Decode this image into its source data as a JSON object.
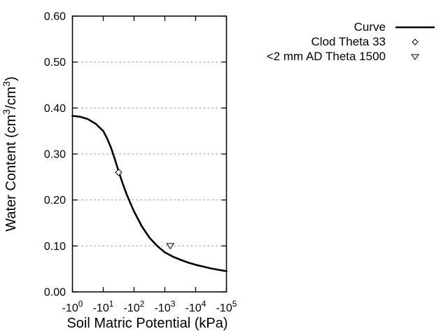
{
  "window": {
    "background": "#ffffff"
  },
  "colors": {
    "text": "#000000",
    "frame": "#000000",
    "curve": "#000000",
    "grid": "#999999",
    "marker_stroke": "#000000",
    "marker_fill": "#ffffff"
  },
  "legend": {
    "position": "top-right, outside plot area",
    "items": [
      {
        "label": "Curve",
        "sample": "solid-line"
      },
      {
        "label": "Clod Theta 33",
        "sample": "open-diamond"
      },
      {
        "label": "<2 mm AD Theta 1500",
        "sample": "open-triangle-down"
      }
    ]
  },
  "chart_data": {
    "type": "line",
    "title": "",
    "xlabel": "Soil Matric Potential (kPa)",
    "ylabel": "Water Content (cm3/cm3)",
    "ylabel_parts": [
      {
        "t": "Water Content (cm"
      },
      {
        "sup": "3"
      },
      {
        "t": "/cm"
      },
      {
        "sup": "3"
      },
      {
        "t": ")"
      }
    ],
    "x_scale": "negative log10 axis, from -10^0 to -10^5 kPa",
    "xlim_decades": [
      0,
      5
    ],
    "ylim": [
      0.0,
      0.6
    ],
    "grid": "horizontal dashed gray lines at 0.10 through 0.50",
    "x_ticks": [
      {
        "base": "-10",
        "exp": "0",
        "decade": 0
      },
      {
        "base": "-10",
        "exp": "1",
        "decade": 1
      },
      {
        "base": "-10",
        "exp": "2",
        "decade": 2
      },
      {
        "base": "-10",
        "exp": "3",
        "decade": 3
      },
      {
        "base": "-10",
        "exp": "4",
        "decade": 4
      },
      {
        "base": "-10",
        "exp": "5",
        "decade": 5
      }
    ],
    "y_ticks": [
      {
        "label": "0.00",
        "value": 0.0
      },
      {
        "label": "0.10",
        "value": 0.1
      },
      {
        "label": "0.20",
        "value": 0.2
      },
      {
        "label": "0.30",
        "value": 0.3
      },
      {
        "label": "0.40",
        "value": 0.4
      },
      {
        "label": "0.50",
        "value": 0.5
      },
      {
        "label": "0.60",
        "value": 0.6
      }
    ],
    "grid_y_values": [
      0.1,
      0.2,
      0.3,
      0.4,
      0.5
    ],
    "series": [
      {
        "name": "Curve",
        "style": "solid black line, width ~2.5px",
        "points_log10kpa_theta": [
          [
            0.0,
            0.383
          ],
          [
            0.25,
            0.381
          ],
          [
            0.5,
            0.376
          ],
          [
            0.75,
            0.366
          ],
          [
            1.0,
            0.35
          ],
          [
            1.125,
            0.334
          ],
          [
            1.25,
            0.314
          ],
          [
            1.375,
            0.289
          ],
          [
            1.5,
            0.262
          ],
          [
            1.625,
            0.237
          ],
          [
            1.75,
            0.214
          ],
          [
            1.875,
            0.194
          ],
          [
            2.0,
            0.175
          ],
          [
            2.25,
            0.143
          ],
          [
            2.5,
            0.118
          ],
          [
            2.75,
            0.1
          ],
          [
            3.0,
            0.086
          ],
          [
            3.25,
            0.077
          ],
          [
            3.5,
            0.07
          ],
          [
            3.75,
            0.064
          ],
          [
            4.0,
            0.059
          ],
          [
            4.25,
            0.055
          ],
          [
            4.5,
            0.051
          ],
          [
            4.75,
            0.048
          ],
          [
            5.0,
            0.045
          ]
        ]
      },
      {
        "name": "Clod Theta 33",
        "style": "open-diamond",
        "points_log10kpa_theta": [
          [
            1.5,
            0.26
          ]
        ],
        "matric_potential_kpa": -33,
        "water_content": 0.26
      },
      {
        "name": "<2 mm AD Theta 1500",
        "style": "open-triangle-down",
        "points_log10kpa_theta": [
          [
            3.176,
            0.1
          ]
        ],
        "matric_potential_kpa": -1500,
        "water_content": 0.1
      }
    ]
  }
}
